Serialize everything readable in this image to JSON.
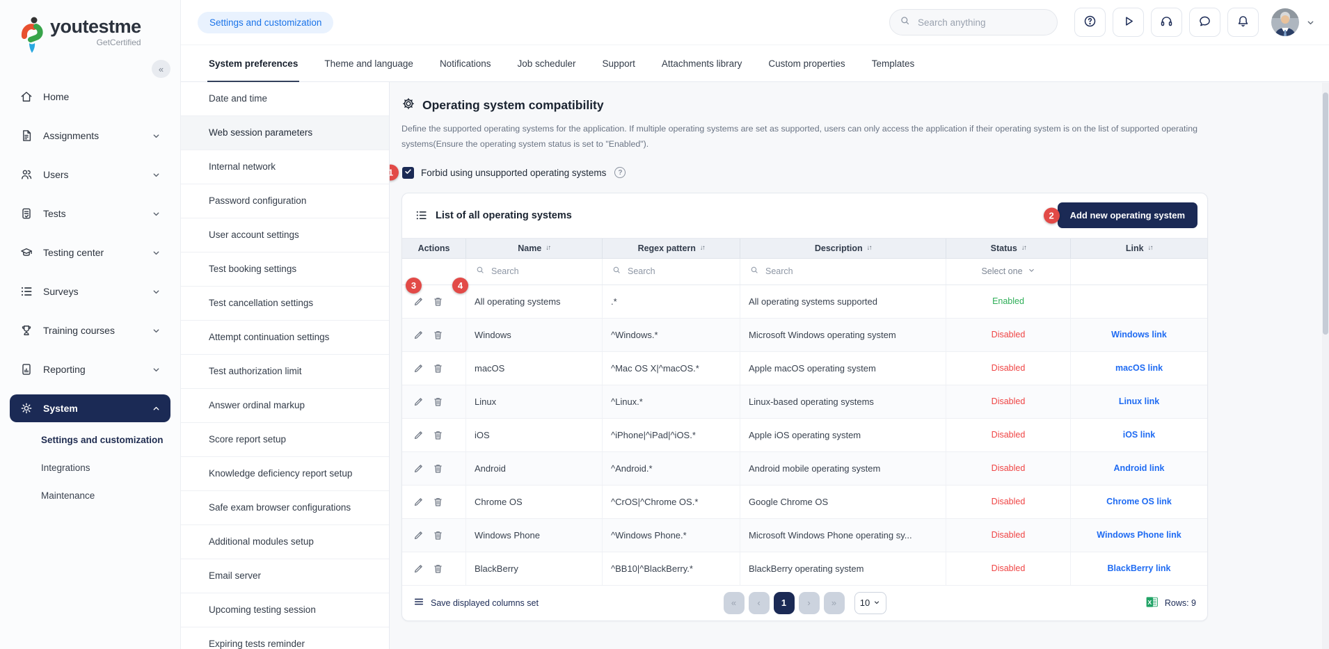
{
  "brand": {
    "parts": [
      {
        "t": "you",
        "c": "dark"
      },
      {
        "t": "t",
        "c": "red"
      },
      {
        "t": "e",
        "c": "dark"
      },
      {
        "t": "s",
        "c": "green"
      },
      {
        "t": "t",
        "c": "orange"
      },
      {
        "t": "me",
        "c": "dark"
      }
    ],
    "subtitle": "GetCertified"
  },
  "topbar": {
    "badge": "Settings and customization",
    "search_placeholder": "Search anything"
  },
  "tabs": [
    {
      "label": "System preferences",
      "cls": "active"
    },
    {
      "label": "Theme and language"
    },
    {
      "label": "Notifications"
    },
    {
      "label": "Job scheduler"
    },
    {
      "label": "Support"
    },
    {
      "label": "Attachments library"
    },
    {
      "label": "Custom properties"
    },
    {
      "label": "Templates"
    }
  ],
  "sidebar": {
    "items": [
      {
        "label": "Home",
        "icon": "home",
        "chev": "chev-none"
      },
      {
        "label": "Assignments",
        "icon": "assignments",
        "chev": "chev-down"
      },
      {
        "label": "Users",
        "icon": "users",
        "chev": "chev-down"
      },
      {
        "label": "Tests",
        "icon": "tests",
        "chev": "chev-down"
      },
      {
        "label": "Testing center",
        "icon": "testing-center",
        "chev": "chev-down"
      },
      {
        "label": "Surveys",
        "icon": "surveys",
        "chev": "chev-down"
      },
      {
        "label": "Training courses",
        "icon": "training-courses",
        "chev": "chev-down"
      },
      {
        "label": "Reporting",
        "icon": "reporting",
        "chev": "chev-down"
      },
      {
        "label": "System",
        "icon": "system",
        "chev": "chev-up",
        "cls": "active"
      }
    ],
    "sub_items": [
      {
        "label": "Settings and customization",
        "cls": "current"
      },
      {
        "label": "Integrations"
      },
      {
        "label": "Maintenance"
      }
    ]
  },
  "settings_nav": [
    {
      "label": "Date and time"
    },
    {
      "label": "Web session parameters",
      "cls": "selected"
    },
    {
      "label": "Internal network"
    },
    {
      "label": "Password configuration"
    },
    {
      "label": "User account settings"
    },
    {
      "label": "Test booking settings"
    },
    {
      "label": "Test cancellation settings"
    },
    {
      "label": "Attempt continuation settings"
    },
    {
      "label": "Test authorization limit"
    },
    {
      "label": "Answer ordinal markup"
    },
    {
      "label": "Score report setup"
    },
    {
      "label": "Knowledge deficiency report setup"
    },
    {
      "label": "Safe exam browser configurations"
    },
    {
      "label": "Additional modules setup"
    },
    {
      "label": "Email server"
    },
    {
      "label": "Upcoming testing session"
    },
    {
      "label": "Expiring tests reminder"
    }
  ],
  "main": {
    "title": "Operating system compatibility",
    "description": "Define the supported operating systems for the application. If multiple operating systems are set as supported, users can only access the application if their operating system is on the list of supported operating systems(Ensure the operating system status is set to \"Enabled\").",
    "checkbox_label": "Forbid using unsupported operating systems",
    "card_title": "List of all operating systems",
    "add_button": "Add new operating system",
    "table": {
      "columns": [
        {
          "label": "Actions"
        },
        {
          "label": "Name",
          "cls": "sortable"
        },
        {
          "label": "Regex pattern",
          "cls": "sortable"
        },
        {
          "label": "Description",
          "cls": "sortable"
        },
        {
          "label": "Status",
          "cls": "sortable"
        },
        {
          "label": "Link",
          "cls": "sortable"
        }
      ],
      "search_placeholder": "Search",
      "status_filter": "Select one",
      "rows": [
        {
          "name": "All operating systems",
          "regex": ".*",
          "description": "All operating systems supported",
          "status": "Enabled",
          "status_class": "enabled",
          "link": ""
        },
        {
          "name": "Windows",
          "regex": "^Windows.*",
          "description": "Microsoft Windows operating system",
          "status": "Disabled",
          "status_class": "disabled",
          "link": "Windows link"
        },
        {
          "name": "macOS",
          "regex": "^Mac OS X|^macOS.*",
          "description": "Apple macOS operating system",
          "status": "Disabled",
          "status_class": "disabled",
          "link": "macOS link"
        },
        {
          "name": "Linux",
          "regex": "^Linux.*",
          "description": "Linux-based operating systems",
          "status": "Disabled",
          "status_class": "disabled",
          "link": "Linux link"
        },
        {
          "name": "iOS",
          "regex": "^iPhone|^iPad|^iOS.*",
          "description": "Apple iOS operating system",
          "status": "Disabled",
          "status_class": "disabled",
          "link": "iOS link"
        },
        {
          "name": "Android",
          "regex": "^Android.*",
          "description": "Android mobile operating system",
          "status": "Disabled",
          "status_class": "disabled",
          "link": "Android link"
        },
        {
          "name": "Chrome OS",
          "regex": "^CrOS|^Chrome OS.*",
          "description": "Google Chrome OS",
          "status": "Disabled",
          "status_class": "disabled",
          "link": "Chrome OS link"
        },
        {
          "name": "Windows Phone",
          "regex": "^Windows Phone.*",
          "description": "Microsoft Windows Phone operating sy...",
          "status": "Disabled",
          "status_class": "disabled",
          "link": "Windows Phone link"
        },
        {
          "name": "BlackBerry",
          "regex": "^BB10|^BlackBerry.*",
          "description": "BlackBerry operating system",
          "status": "Disabled",
          "status_class": "disabled",
          "link": "BlackBerry link"
        }
      ]
    },
    "footer": {
      "save_columns_label": "Save displayed columns set",
      "pager": {
        "first": "«",
        "prev": "‹",
        "page": "1",
        "next": "›",
        "last": "»"
      },
      "page_size": "10",
      "rows_label": "Rows: 9"
    }
  },
  "annotations": {
    "badge1": "1",
    "badge2": "2",
    "badge3": "3",
    "badge4": "4"
  },
  "colors": {
    "navy": "#1b2a55",
    "link_blue": "#1f6bf2",
    "enabled_green": "#2eae57",
    "disabled_red": "#ef4444",
    "annotation_red": "#e24a47",
    "badge_pill_bg": "#e9f2fe",
    "badge_pill_text": "#1a73e8"
  }
}
